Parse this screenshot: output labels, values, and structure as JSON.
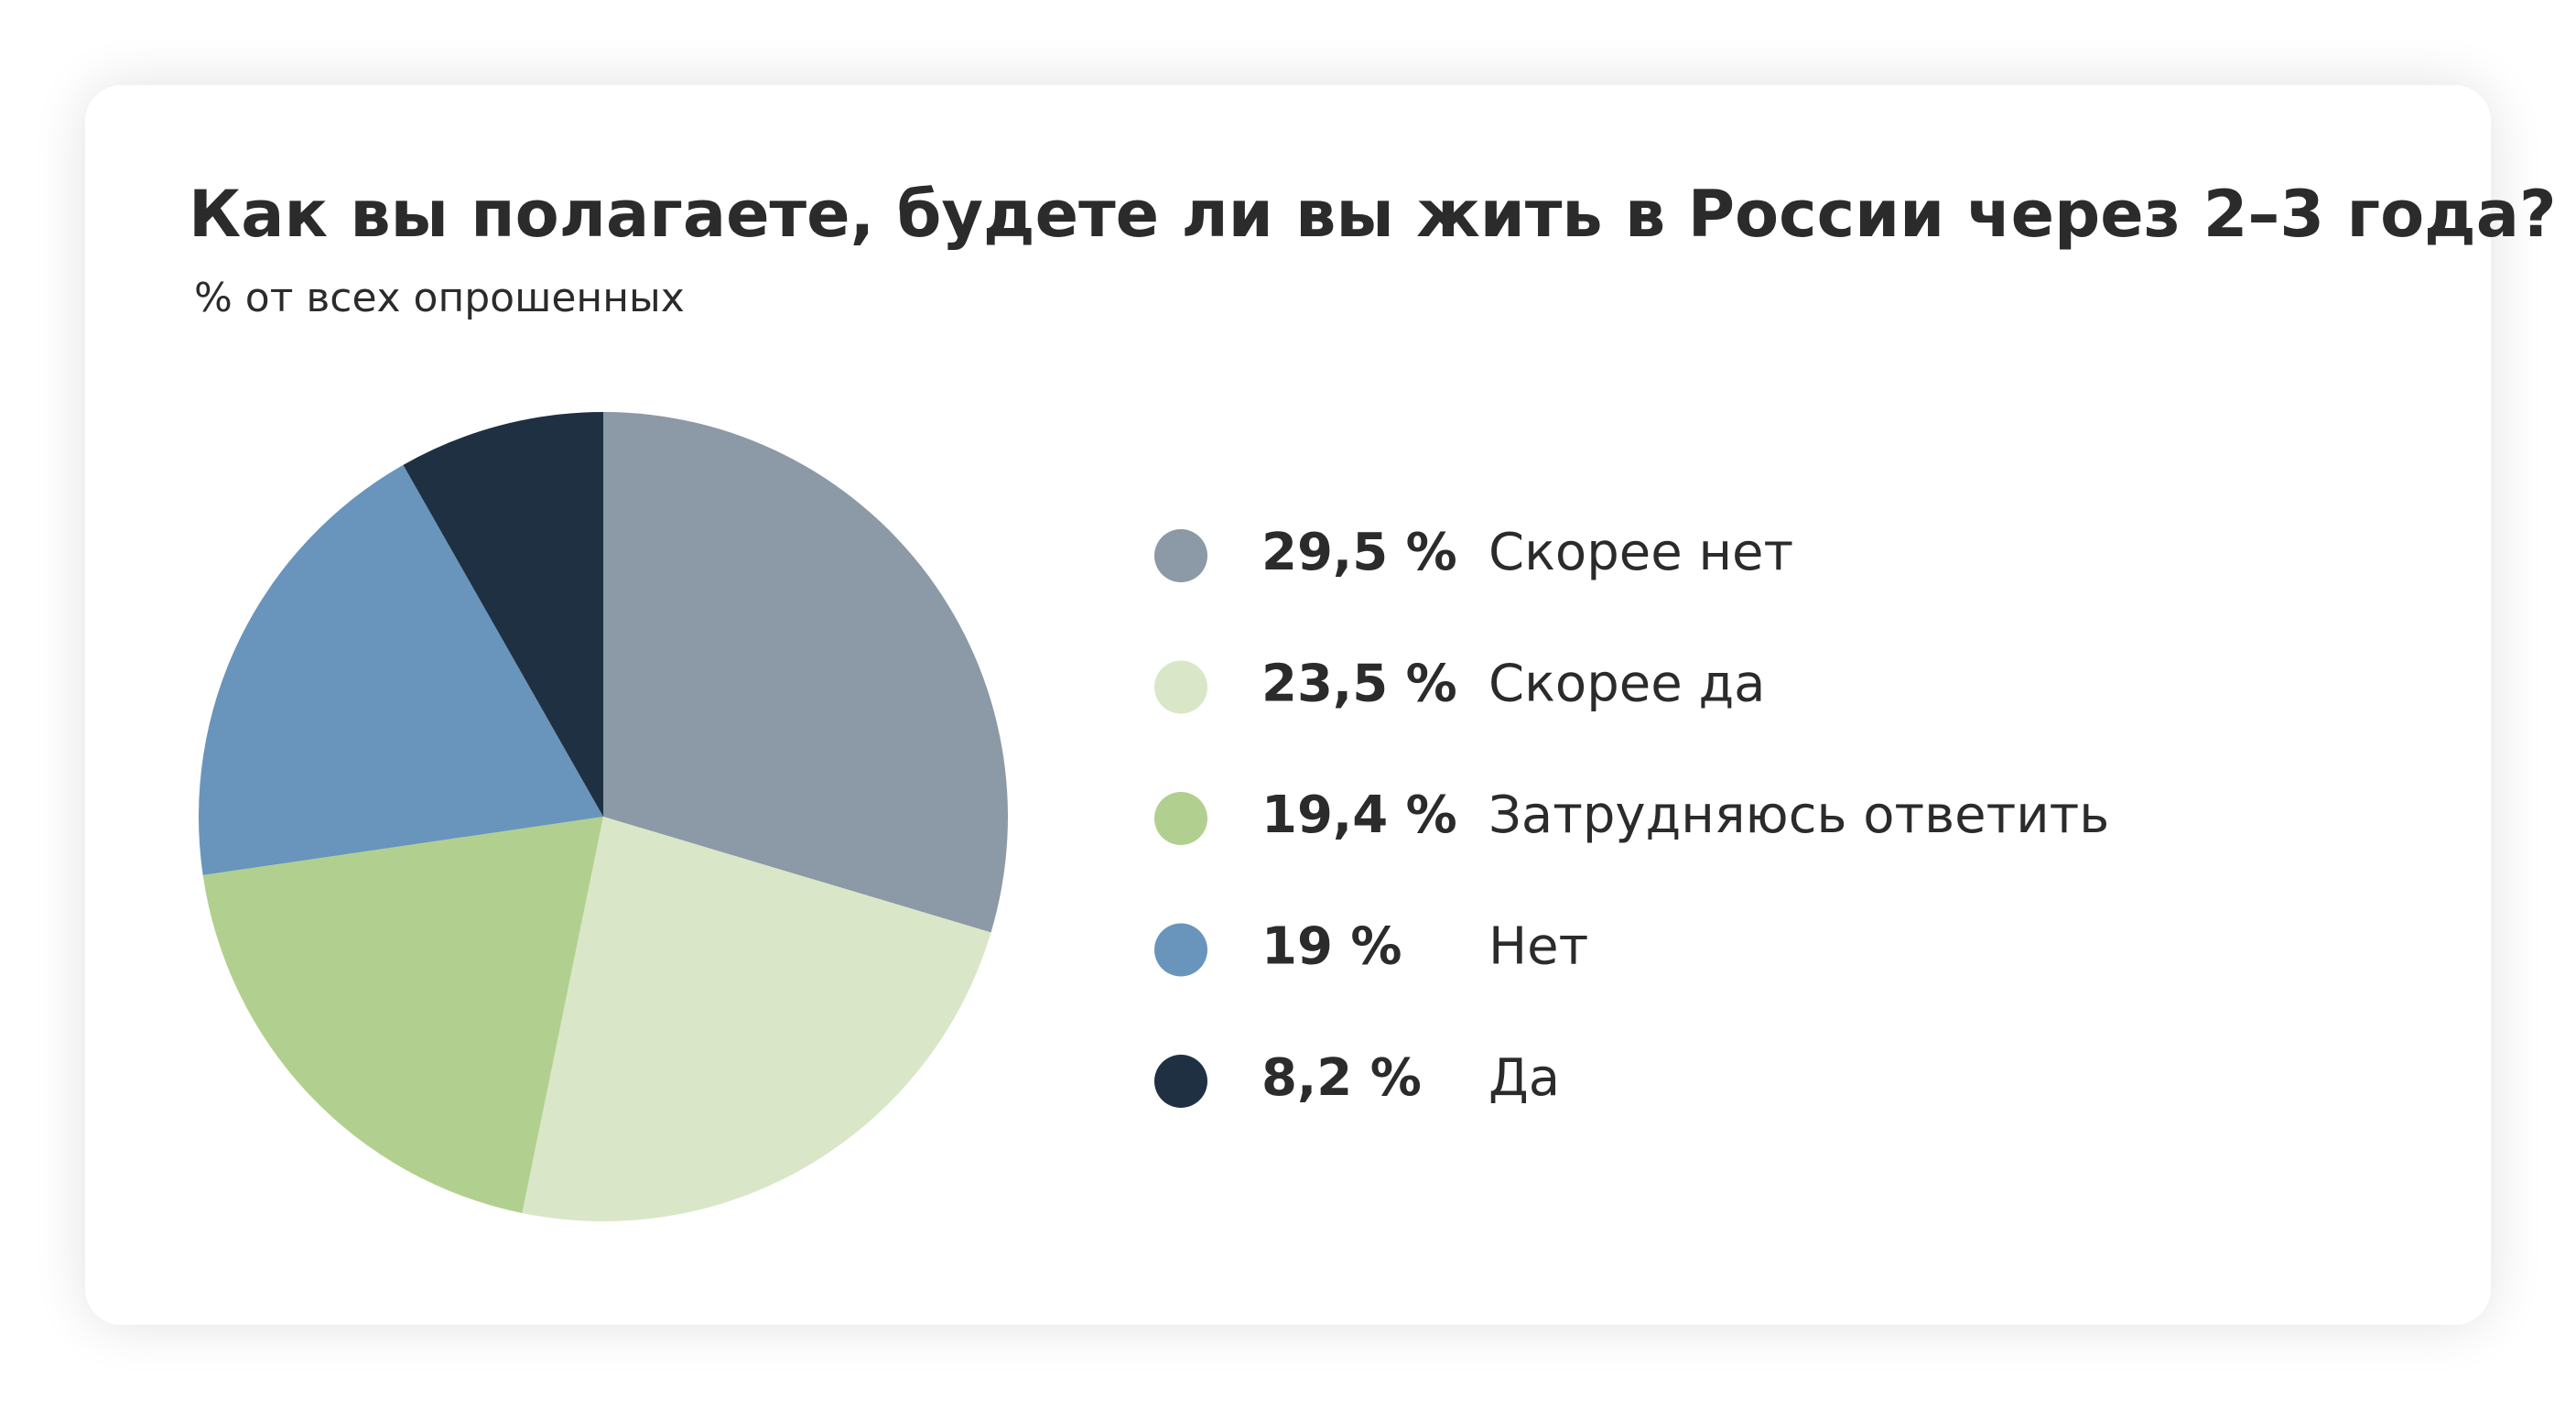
{
  "chart_data": {
    "type": "pie",
    "title": "Как вы полагаете, будете ли вы жить в России через 2–3 года?",
    "subtitle": "% от всех опрошенных",
    "categories": [
      "Скорее нет",
      "Скорее да",
      "Затрудняюсь ответить",
      "Нет",
      "Да"
    ],
    "values": [
      29.5,
      23.5,
      19.4,
      19,
      8.2
    ],
    "value_labels": [
      "29,5 %",
      "23,5 %",
      "19,4 %",
      "19 %",
      "8,2 %"
    ],
    "colors": [
      "#8c99a6",
      "#d9e7c8",
      "#b1d08f",
      "#6995bc",
      "#1f3043"
    ]
  }
}
